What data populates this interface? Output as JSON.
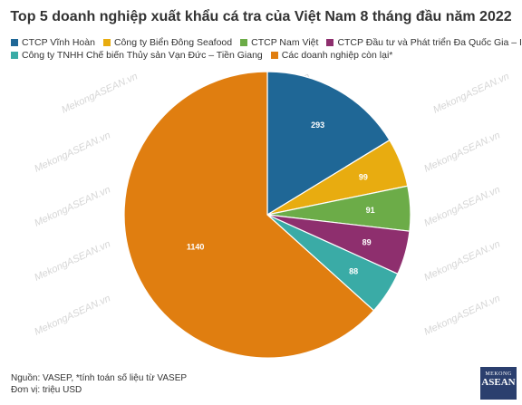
{
  "title": "Top 5 doanh nghiệp xuất khẩu cá tra của Việt Nam 8 tháng đầu năm 2022",
  "footer": {
    "source": "Nguồn: VASEP, *tính toán số liệu từ VASEP",
    "unit": "Đơn vị: triệu USD"
  },
  "brand": {
    "line1": "MEKONG",
    "line2": "ASEAN"
  },
  "watermark_text": "MekongASEAN.vn",
  "chart_data": {
    "type": "pie",
    "title": "Top 5 doanh nghiệp xuất khẩu cá tra của Việt Nam 8 tháng đầu năm 2022",
    "legend_position": "top",
    "slices": [
      {
        "label": "CTCP Vĩnh Hoàn",
        "value": 293,
        "color": "#1f6796"
      },
      {
        "label": "Công ty Biển Đông Seafood",
        "value": 99,
        "color": "#e8ac10"
      },
      {
        "label": "CTCP Nam Việt",
        "value": 91,
        "color": "#6cac48"
      },
      {
        "label": "CTCP Đầu tư và Phát triển Đa Quốc Gia – IDI",
        "value": 89,
        "color": "#8e2f6e"
      },
      {
        "label": "Công ty TNHH Chế biến Thủy sản Vạn Đức – Tiền Giang",
        "value": 88,
        "color": "#3aaba6"
      },
      {
        "label": "Các doanh nghiệp còn lại*",
        "value": 1140,
        "color": "#e07e10"
      }
    ]
  }
}
